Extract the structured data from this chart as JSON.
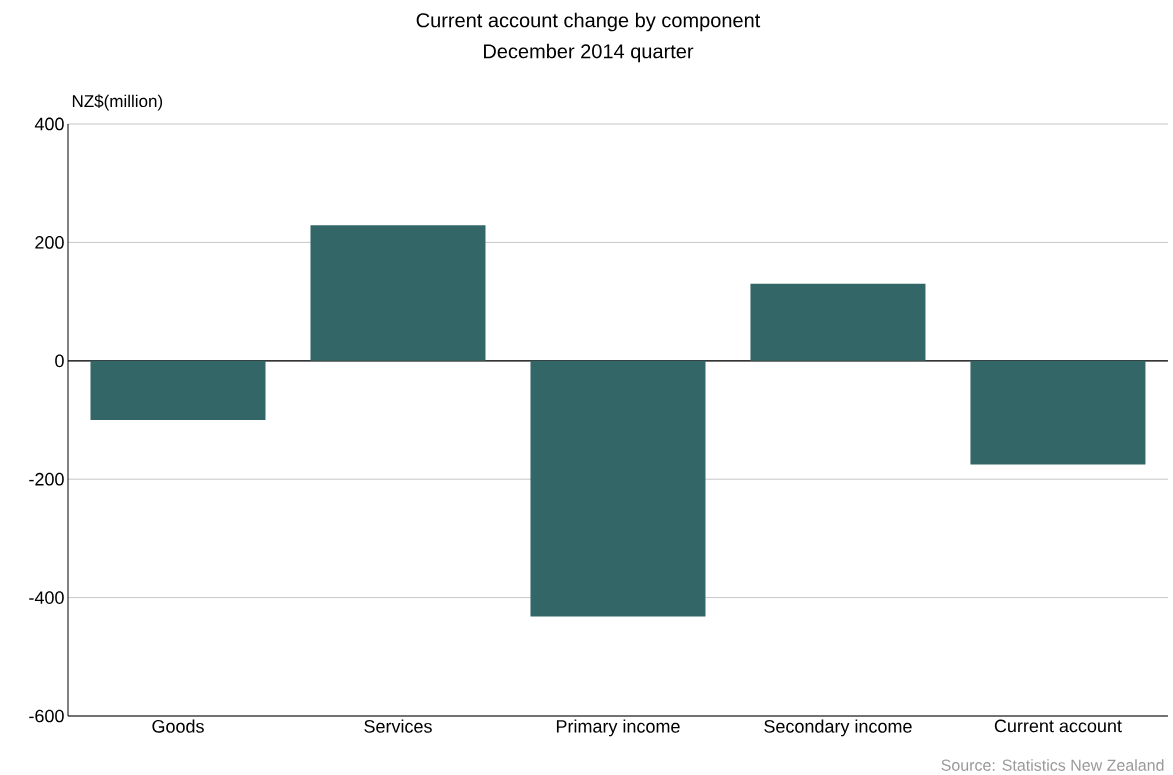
{
  "chart_data": {
    "type": "bar",
    "title": "Current account change by component",
    "subtitle": "December 2014 quarter",
    "ylabel": "NZ$(million)",
    "categories": [
      "Goods",
      "Services",
      "Primary income",
      "Secondary income",
      "Current account"
    ],
    "values": [
      -100,
      229,
      -432,
      130,
      -175
    ],
    "color": "#336666",
    "ylim": [
      -600,
      400
    ],
    "yticks": [
      -600,
      -400,
      -200,
      0,
      200,
      400
    ],
    "grid": "y",
    "ref_lines": [
      {
        "axis": "y",
        "value": 0,
        "color": "#000000"
      }
    ],
    "annotations": [
      "Source: Statistics New Zealand"
    ]
  }
}
